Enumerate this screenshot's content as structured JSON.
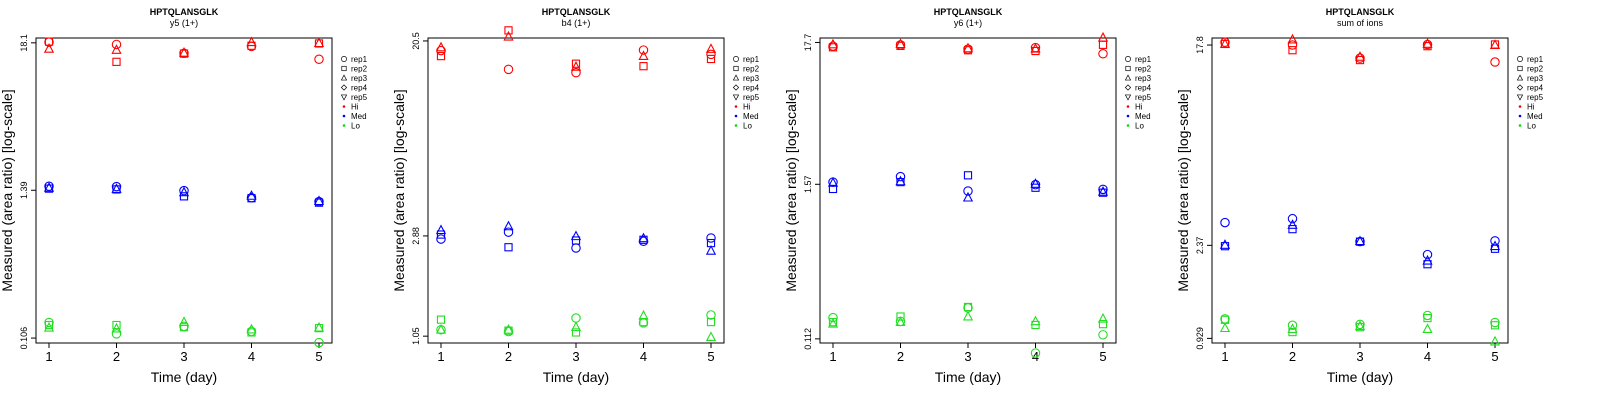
{
  "chart_data": {
    "figure_title": "HPTQLANSGLK",
    "type": "scatter",
    "xlabel": "Time (day)",
    "ylabel": "Measured (area ratio) [log-scale]",
    "x_ticks": [
      "1",
      "2",
      "3",
      "4",
      "5"
    ],
    "legend": [
      {
        "label": "rep1",
        "symbol": "circle"
      },
      {
        "label": "rep2",
        "symbol": "square"
      },
      {
        "label": "rep3",
        "symbol": "triangle"
      },
      {
        "label": "rep4",
        "symbol": "diamond"
      },
      {
        "label": "rep5",
        "symbol": "triangle-down"
      },
      {
        "label": "Hi",
        "symbol": "dot",
        "color": "#ff0000"
      },
      {
        "label": "Med",
        "symbol": "dot",
        "color": "#0000ff"
      },
      {
        "label": "Lo",
        "symbol": "dot",
        "color": "#00dd00"
      }
    ],
    "level_colors": {
      "Hi": "#ff0000",
      "Med": "#0000ff",
      "Lo": "#22dd22"
    },
    "panels": [
      {
        "title": "HPTQLANSGLK",
        "subtitle": "y5 (1+)",
        "y_ticks": [
          "0.106",
          "1.39",
          "18.1"
        ],
        "ylim_log": [
          -2.33,
          2.98
        ],
        "y_tick_values": [
          0.106,
          1.39,
          18.1
        ],
        "series": [
          {
            "level": "Hi",
            "rep": "rep1",
            "values": [
              18.3,
              17.6,
              15.1,
              17.0,
              13.6
            ]
          },
          {
            "level": "Hi",
            "rep": "rep2",
            "values": [
              18.5,
              13.0,
              15.0,
              17.2,
              17.9
            ]
          },
          {
            "level": "Hi",
            "rep": "rep3",
            "values": [
              16.3,
              16.0,
              15.2,
              18.3,
              18.0
            ]
          },
          {
            "level": "Med",
            "rep": "rep1",
            "values": [
              1.49,
              1.48,
              1.38,
              1.22,
              1.14
            ]
          },
          {
            "level": "Med",
            "rep": "rep2",
            "values": [
              1.43,
              1.41,
              1.25,
              1.21,
              1.12
            ]
          },
          {
            "level": "Med",
            "rep": "rep3",
            "values": [
              1.45,
              1.42,
              1.34,
              1.26,
              1.15
            ]
          },
          {
            "level": "Lo",
            "rep": "rep1",
            "values": [
              0.139,
              0.114,
              0.13,
              0.119,
              0.098
            ]
          },
          {
            "level": "Lo",
            "rep": "rep2",
            "values": [
              0.133,
              0.133,
              0.128,
              0.117,
              0.126
            ]
          },
          {
            "level": "Lo",
            "rep": "rep3",
            "values": [
              0.127,
              0.125,
              0.14,
              0.123,
              0.127
            ]
          }
        ]
      },
      {
        "title": "HPTQLANSGLK",
        "subtitle": "b4 (1+)",
        "y_ticks": [
          "1.05",
          "2.88",
          "20.5"
        ],
        "ylim_log": [
          -0.02,
          3.05
        ],
        "y_tick_values": [
          1.05,
          2.88,
          20.5
        ],
        "series": [
          {
            "level": "Hi",
            "rep": "rep1",
            "values": [
              18.6,
              15.4,
              14.9,
              18.7,
              17.9
            ]
          },
          {
            "level": "Hi",
            "rep": "rep2",
            "values": [
              17.6,
              22.8,
              16.3,
              15.9,
              17.1
            ]
          },
          {
            "level": "Hi",
            "rep": "rep3",
            "values": [
              19.2,
              21.4,
              15.8,
              17.6,
              18.9
            ]
          },
          {
            "level": "Med",
            "rep": "rep1",
            "values": [
              2.79,
              2.99,
              2.55,
              2.73,
              2.82
            ]
          },
          {
            "level": "Med",
            "rep": "rep2",
            "values": [
              2.92,
              2.57,
              2.75,
              2.77,
              2.68
            ]
          },
          {
            "level": "Med",
            "rep": "rep3",
            "values": [
              3.05,
              3.17,
              2.87,
              2.81,
              2.48
            ]
          },
          {
            "level": "Lo",
            "rep": "rep1",
            "values": [
              1.12,
              1.1,
              1.26,
              1.2,
              1.3
            ]
          },
          {
            "level": "Lo",
            "rep": "rep2",
            "values": [
              1.24,
              1.11,
              1.09,
              1.21,
              1.21
            ]
          },
          {
            "level": "Lo",
            "rep": "rep3",
            "values": [
              1.12,
              1.12,
              1.15,
              1.29,
              1.04
            ]
          }
        ]
      },
      {
        "title": "HPTQLANSGLK",
        "subtitle": "y6 (1+)",
        "y_ticks": [
          "0.112",
          "1.57",
          "17.7"
        ],
        "ylim_log": [
          -2.26,
          2.95
        ],
        "y_tick_values": [
          0.112,
          1.57,
          17.7
        ],
        "series": [
          {
            "level": "Hi",
            "rep": "rep1",
            "values": [
              16.6,
              17.0,
              15.8,
              16.2,
              14.6
            ]
          },
          {
            "level": "Hi",
            "rep": "rep2",
            "values": [
              16.3,
              16.7,
              15.5,
              15.3,
              17.0
            ]
          },
          {
            "level": "Hi",
            "rep": "rep3",
            "values": [
              17.1,
              17.2,
              16.0,
              15.9,
              19.2
            ]
          },
          {
            "level": "Med",
            "rep": "rep1",
            "values": [
              1.63,
              1.79,
              1.4,
              1.56,
              1.44
            ]
          },
          {
            "level": "Med",
            "rep": "rep2",
            "values": [
              1.45,
              1.63,
              1.83,
              1.48,
              1.36
            ]
          },
          {
            "level": "Med",
            "rep": "rep3",
            "values": [
              1.61,
              1.65,
              1.25,
              1.58,
              1.38
            ]
          },
          {
            "level": "Lo",
            "rep": "rep1",
            "values": [
              0.161,
              0.151,
              0.19,
              0.088,
              0.12
            ]
          },
          {
            "level": "Lo",
            "rep": "rep2",
            "values": [
              0.149,
              0.164,
              0.193,
              0.142,
              0.144
            ]
          },
          {
            "level": "Lo",
            "rep": "rep3",
            "values": [
              0.145,
              0.149,
              0.164,
              0.151,
              0.158
            ]
          }
        ]
      },
      {
        "title": "HPTQLANSGLK",
        "subtitle": "sum of ions",
        "y_ticks": [
          "0.929",
          "2.37",
          "17.8"
        ],
        "ylim_log": [
          -0.12,
          2.95
        ],
        "y_tick_values": [
          0.929,
          2.37,
          17.8
        ],
        "series": [
          {
            "level": "Hi",
            "rep": "rep1",
            "values": [
              18.3,
              17.8,
              15.6,
              17.9,
              15.0
            ]
          },
          {
            "level": "Hi",
            "rep": "rep2",
            "values": [
              18.0,
              16.9,
              15.3,
              17.6,
              17.9
            ]
          },
          {
            "level": "Hi",
            "rep": "rep3",
            "values": [
              18.0,
              18.8,
              15.8,
              18.0,
              17.8
            ]
          },
          {
            "level": "Med",
            "rep": "rep1",
            "values": [
              2.98,
              3.1,
              2.46,
              2.16,
              2.48
            ]
          },
          {
            "level": "Med",
            "rep": "rep2",
            "values": [
              2.35,
              2.79,
              2.46,
              1.96,
              2.29
            ]
          },
          {
            "level": "Med",
            "rep": "rep3",
            "values": [
              2.38,
              2.91,
              2.47,
              2.03,
              2.35
            ]
          },
          {
            "level": "Lo",
            "rep": "rep1",
            "values": [
              1.13,
              1.06,
              1.07,
              1.17,
              1.09
            ]
          },
          {
            "level": "Lo",
            "rep": "rep2",
            "values": [
              1.12,
              0.99,
              1.04,
              1.14,
              1.06
            ]
          },
          {
            "level": "Lo",
            "rep": "rep3",
            "values": [
              1.03,
              1.02,
              1.05,
              1.02,
              0.9
            ]
          }
        ]
      }
    ]
  }
}
